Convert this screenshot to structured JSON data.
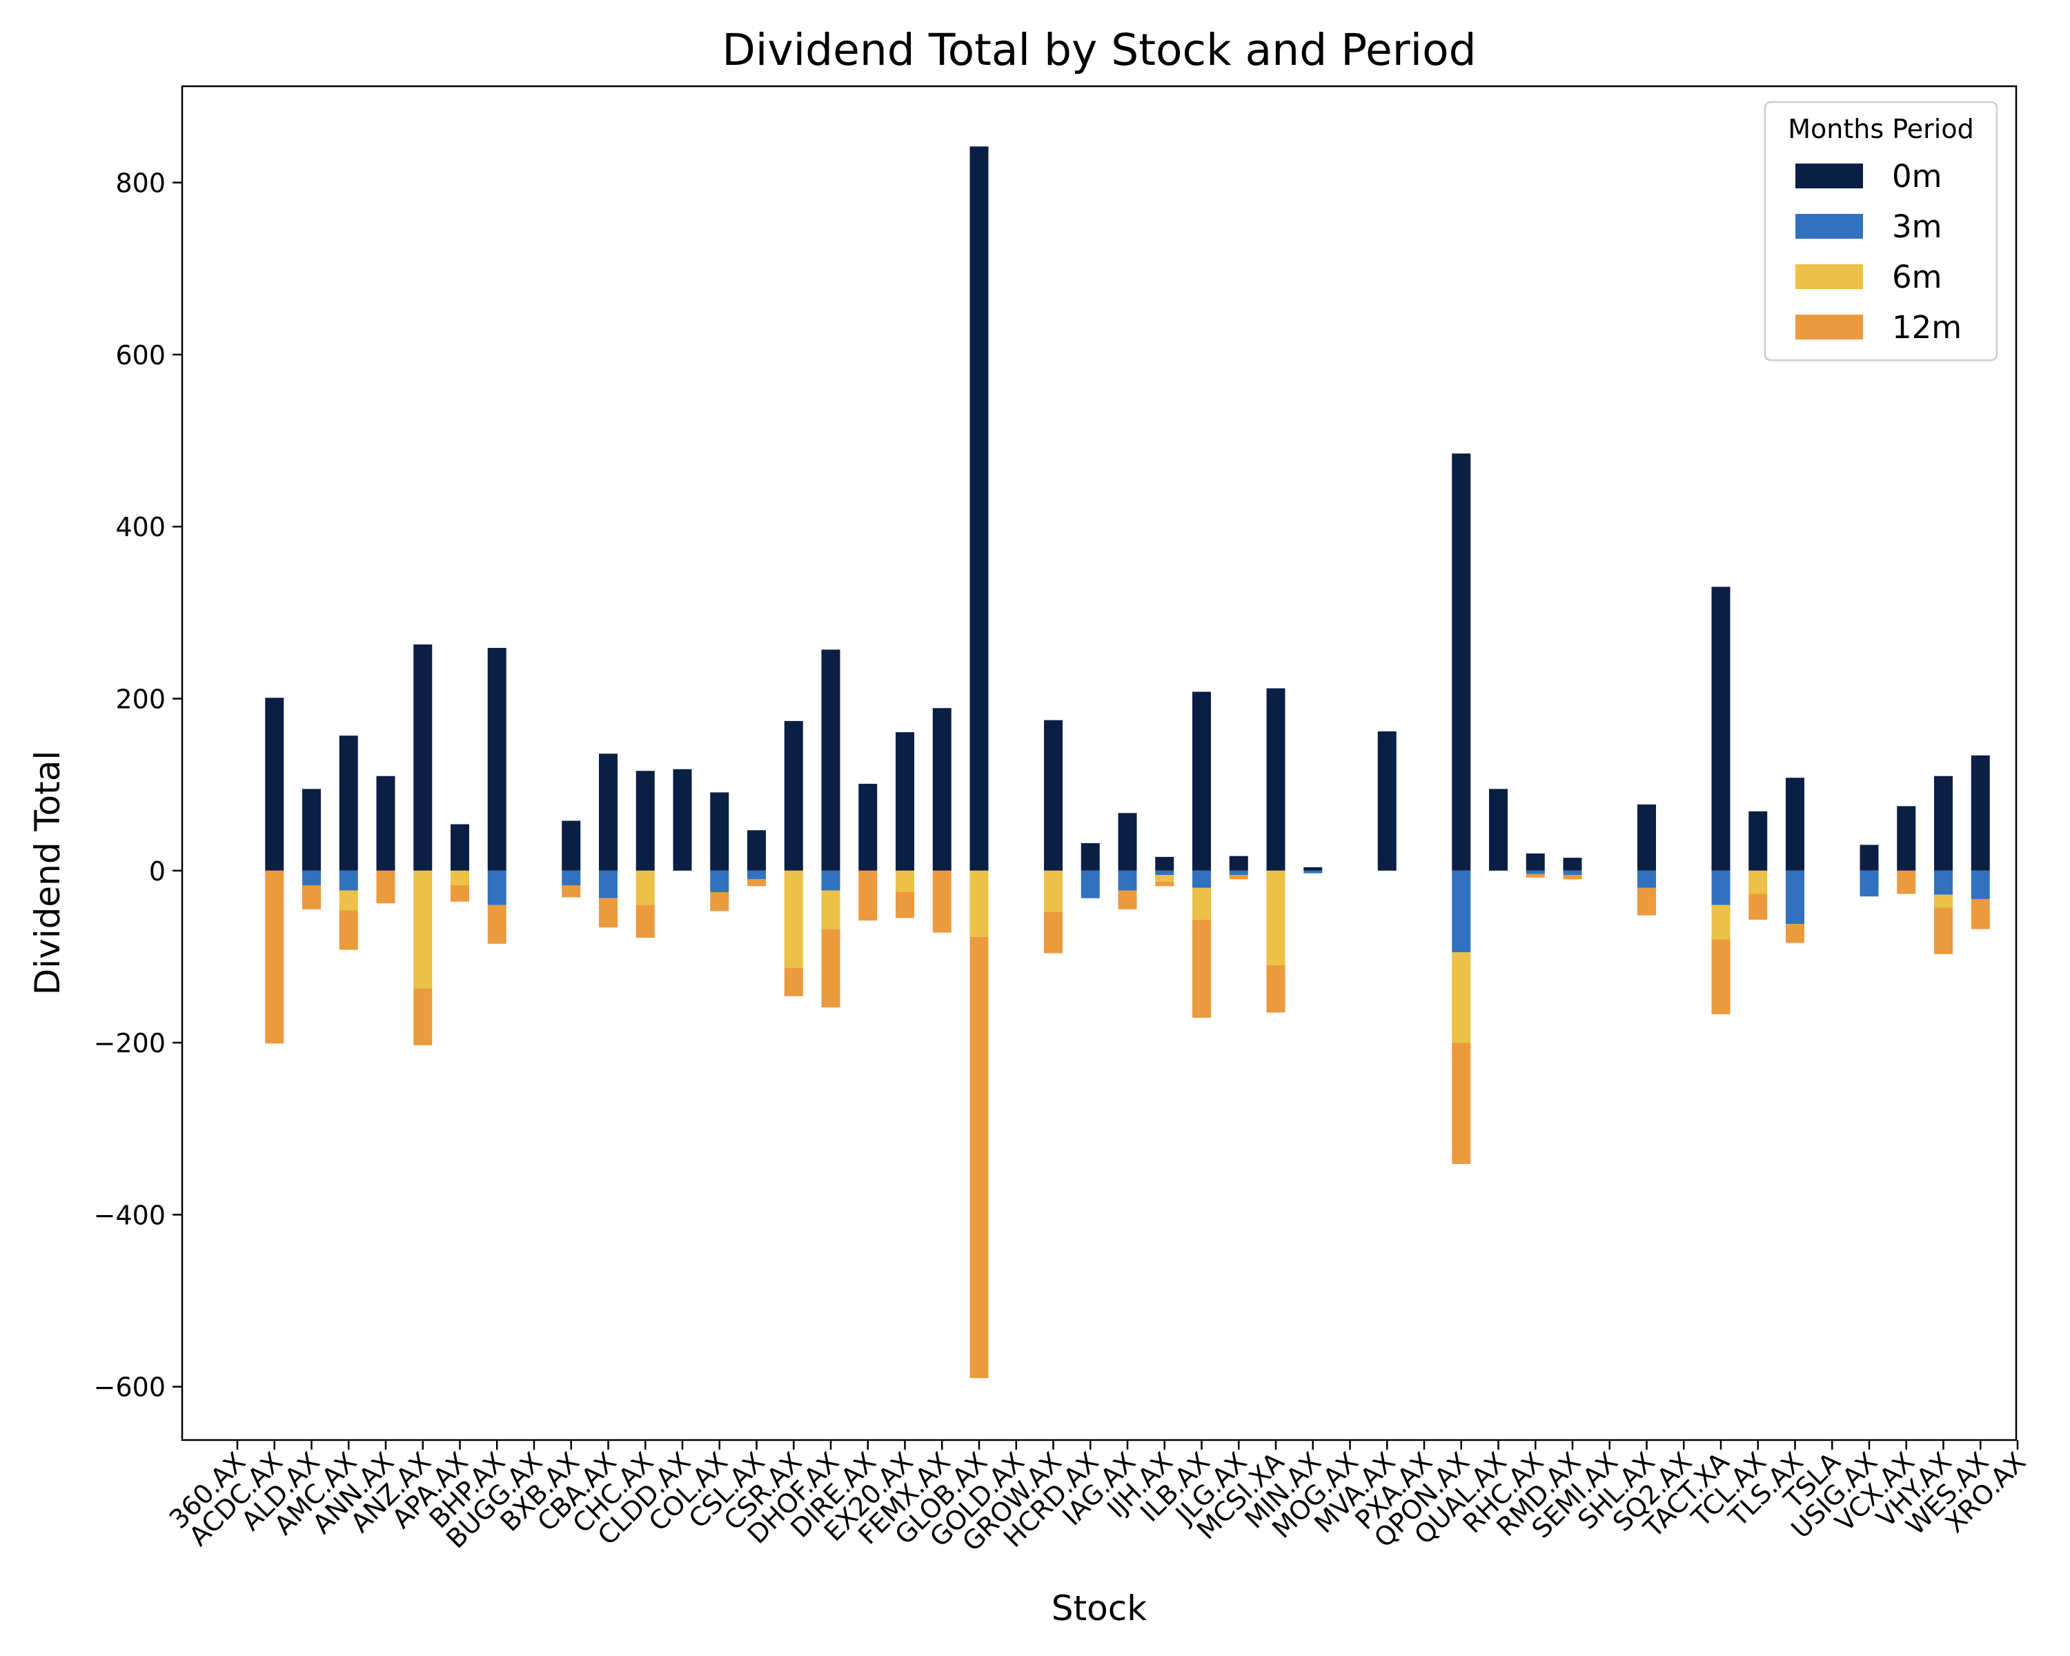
{
  "chart_data": {
    "type": "bar",
    "stacked": "diverging",
    "title": "Dividend Total by Stock and Period",
    "xlabel": "Stock",
    "ylabel": "Dividend Total",
    "ylim": [
      -662,
      912
    ],
    "yticks": [
      -600,
      -400,
      -200,
      0,
      200,
      400,
      600,
      800
    ],
    "ytick_labels": [
      "−600",
      "−400",
      "−200",
      "0",
      "200",
      "400",
      "600",
      "800"
    ],
    "grid": false,
    "legend": {
      "title": "Months Period",
      "position": "top-right"
    },
    "categories": [
      "360.AX",
      "ACDC.AX",
      "ALD.AX",
      "AMC.AX",
      "ANN.AX",
      "ANZ.AX",
      "APA.AX",
      "BHP.AX",
      "BUGG.AX",
      "BXB.AX",
      "CBA.AX",
      "CHC.AX",
      "CLDD.AX",
      "COL.AX",
      "CSL.AX",
      "CSR.AX",
      "DHOF.AX",
      "DIRE.AX",
      "EX20.AX",
      "FEMX.AX",
      "GLOB.AX",
      "GOLD.AX",
      "GROW.AX",
      "HCRD.AX",
      "IAG.AX",
      "IJH.AX",
      "ILB.AX",
      "JLG.AX",
      "MCSI.XA",
      "MIN.AX",
      "MOG.AX",
      "MVA.AX",
      "PXA.AX",
      "QPON.AX",
      "QUAL.AX",
      "RHC.AX",
      "RMD.AX",
      "SEMI.AX",
      "SHL.AX",
      "SQ2.AX",
      "TACT.XA",
      "TCL.AX",
      "TLS.AX",
      "TSLA",
      "USIG.AX",
      "VCX.AX",
      "VHY.AX",
      "WES.AX",
      "XRO.AX"
    ],
    "series": [
      {
        "name": "0m",
        "color": "#0b1f45",
        "values": [
          0,
          201,
          95,
          157,
          110,
          263,
          54,
          259,
          0,
          58,
          136,
          116,
          118,
          91,
          47,
          174,
          257,
          101,
          161,
          189,
          842,
          0,
          175,
          32,
          67,
          16,
          208,
          17,
          212,
          4,
          0,
          162,
          0,
          485,
          95,
          20,
          15,
          0,
          77,
          0,
          330,
          69,
          108,
          0,
          30,
          75,
          110,
          134,
          0
        ]
      },
      {
        "name": "3m",
        "color": "#3271be",
        "values": [
          0,
          0,
          -17,
          -23,
          0,
          0,
          0,
          -40,
          0,
          -17,
          -32,
          0,
          0,
          -25,
          -10,
          0,
          -23,
          0,
          0,
          0,
          0,
          0,
          0,
          -32,
          -23,
          -5,
          -20,
          -5,
          0,
          -3,
          0,
          0,
          0,
          -95,
          0,
          -4,
          -5,
          0,
          -20,
          0,
          -40,
          0,
          -62,
          0,
          -30,
          0,
          -28,
          -33,
          0
        ]
      },
      {
        "name": "6m",
        "color": "#ebc147",
        "values": [
          0,
          0,
          0,
          -23,
          0,
          -137,
          -17,
          0,
          0,
          0,
          0,
          -40,
          0,
          0,
          0,
          -113,
          -45,
          0,
          -25,
          0,
          -77,
          0,
          -48,
          0,
          0,
          -8,
          -37,
          0,
          -110,
          0,
          0,
          0,
          0,
          -105,
          0,
          0,
          0,
          0,
          0,
          0,
          -40,
          -27,
          0,
          0,
          0,
          0,
          -15,
          0,
          0
        ]
      },
      {
        "name": "12m",
        "color": "#ec9a3e",
        "values": [
          0,
          -201,
          -28,
          -46,
          -38,
          -66,
          -19,
          -45,
          0,
          -14,
          -34,
          -38,
          0,
          -22,
          -8,
          -33,
          -91,
          -58,
          -30,
          -72,
          -513,
          0,
          -48,
          0,
          -22,
          -5,
          -114,
          -5,
          -55,
          0,
          0,
          0,
          0,
          -141,
          0,
          -4,
          -5,
          0,
          -32,
          0,
          -87,
          -30,
          -22,
          0,
          0,
          -27,
          -54,
          -35,
          0
        ]
      }
    ]
  }
}
